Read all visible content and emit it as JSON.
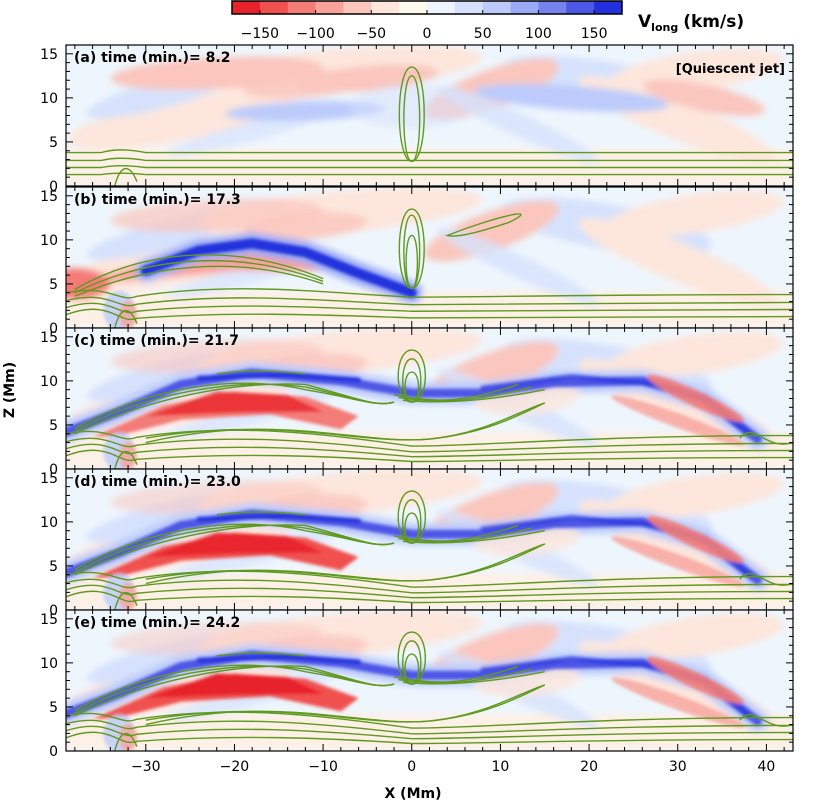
{
  "chart_data": {
    "type": "heatmap",
    "title": "[Quiescent jet]",
    "xlabel": "X (Mm)",
    "ylabel": "Z (Mm)",
    "xlim": [
      -39,
      43
    ],
    "ylim": [
      0,
      16
    ],
    "x_ticks": [
      -30,
      -20,
      -10,
      0,
      10,
      20,
      30,
      40
    ],
    "y_ticks": [
      0,
      5,
      10,
      15
    ],
    "colorbar": {
      "label_main": "V",
      "label_sub": "long",
      "label_units": "(km/s)",
      "range": [
        -175,
        175
      ],
      "ticks": [
        -150,
        -100,
        -50,
        0,
        50,
        100,
        150
      ],
      "colors": [
        "#e8222a",
        "#f0514f",
        "#f47c77",
        "#f7a29b",
        "#fac6bd",
        "#fde6dc",
        "#fefaf0",
        "#edf6fe",
        "#d6e2fd",
        "#bccbfb",
        "#9aaaf6",
        "#7683ef",
        "#4d57e6",
        "#2230dd"
      ]
    },
    "panels": [
      {
        "label": "(a) time (min.)= 8.2",
        "time_min": 8.2,
        "stage": 0.0
      },
      {
        "label": "(b) time (min.)= 17.3",
        "time_min": 17.3,
        "stage": 0.55
      },
      {
        "label": "(c) time (min.)= 21.7",
        "time_min": 21.7,
        "stage": 0.82
      },
      {
        "label": "(d) time (min.)= 23.0",
        "time_min": 23.0,
        "stage": 0.92
      },
      {
        "label": "(e) time (min.)= 24.2",
        "time_min": 24.2,
        "stage": 1.0
      }
    ],
    "contour_color": "#5f9a1e"
  }
}
